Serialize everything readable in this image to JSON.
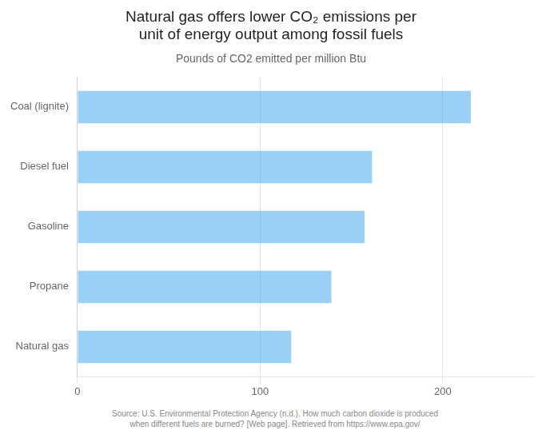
{
  "chart_data": {
    "type": "bar",
    "title": "Natural gas offers lower CO₂ emissions per\nunit of energy output among fossil fuels",
    "subtitle": "Pounds of CO2 emitted per million Btu",
    "source": "Source: U.S. Environmental Protection Agency (n.d.). How much carbon dioxide is produced\nwhen different fuels are burned? [Web page]. Retrieved from https://www.epa.gov/",
    "categories": [
      "Coal (lignite)",
      "Diesel fuel",
      "Gasoline",
      "Propane",
      "Natural gas"
    ],
    "values": [
      215.4,
      161.3,
      157.2,
      139.0,
      117.0
    ],
    "orientation": "horizontal",
    "xlim": [
      0,
      250
    ],
    "xticks": [
      0,
      100,
      200
    ],
    "grid": true
  }
}
